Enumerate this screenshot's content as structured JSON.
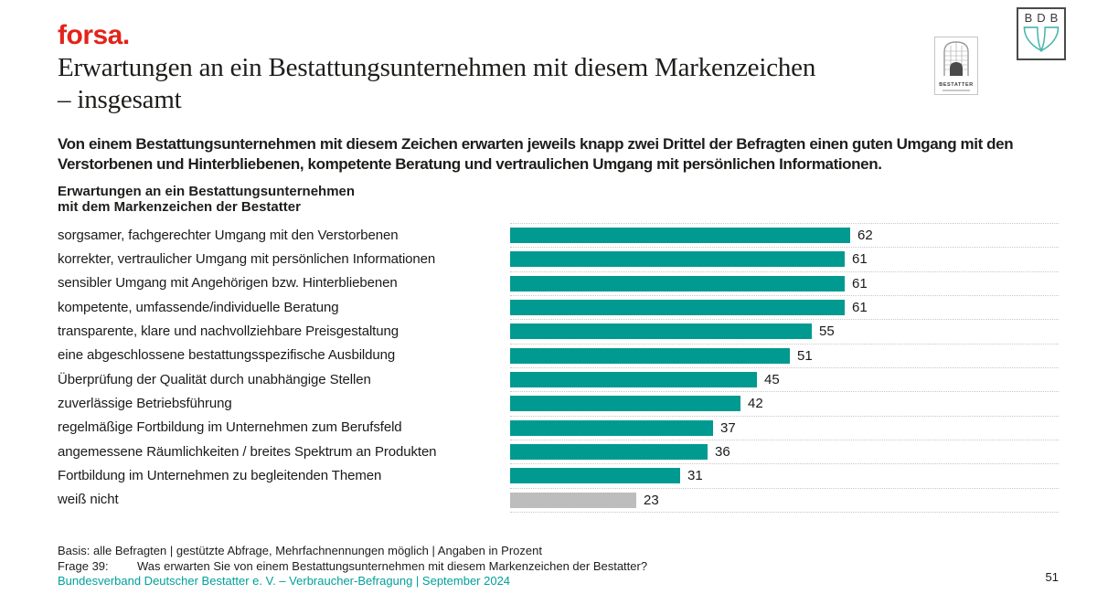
{
  "header": {
    "brand": "forsa.",
    "title_line1": "Erwartungen an ein Bestattungsunternehmen mit diesem Markenzeichen",
    "title_line2": "– insgesamt",
    "bestatter_logo_label": "BESTATTER",
    "bdb_logo_letters": "BDB"
  },
  "intro": {
    "text": "Von einem Bestattungsunternehmen mit diesem Zeichen erwarten jeweils knapp zwei Drittel der Befragten einen guten Umgang mit den Verstorbenen und Hinterbliebenen, kompetente Beratung und vertraulichen Umgang mit persönlichen Informationen."
  },
  "chart_data": {
    "type": "bar",
    "orientation": "horizontal",
    "title_line1": "Erwartungen an ein Bestattungsunternehmen",
    "title_line2": "mit dem Markenzeichen der Bestatter",
    "categories": [
      "sorgsamer, fachgerechter Umgang mit den Verstorbenen",
      "korrekter, vertraulicher Umgang mit persönlichen Informationen",
      "sensibler Umgang mit Angehörigen bzw. Hinterbliebenen",
      "kompetente, umfassende/individuelle Beratung",
      "transparente, klare und nachvollziehbare Preisgestaltung",
      "eine abgeschlossene bestattungsspezifische Ausbildung",
      "Überprüfung der Qualität durch unabhängige Stellen",
      "zuverlässige Betriebsführung",
      "regelmäßige Fortbildung im Unternehmen zum Berufsfeld",
      "angemessene Räumlichkeiten / breites Spektrum an Produkten",
      "Fortbildung im Unternehmen zu begleitenden Themen",
      "weiß nicht"
    ],
    "values": [
      62,
      61,
      61,
      61,
      55,
      51,
      45,
      42,
      37,
      36,
      31,
      23
    ],
    "muted_index": 11,
    "xlim": [
      0,
      100
    ],
    "unit": "Prozent",
    "grid": "dotted row separators, no axis",
    "legend": "none",
    "bar_color": "#009a90",
    "muted_bar_color": "#bdbdbd"
  },
  "footer": {
    "basis": "Basis: alle Befragten | gestützte Abfrage, Mehrfachnennungen möglich | Angaben in Prozent",
    "frage_label": "Frage 39:",
    "frage_text": "Was erwarten Sie von einem Bestattungsunternehmen mit diesem Markenzeichen der Bestatter?",
    "source": "Bundesverband Deutscher Bestatter e. V. – Verbraucher-Befragung | September 2024",
    "page_number": "51"
  },
  "colors": {
    "brand_red": "#e2231a",
    "teal_bar": "#009a90",
    "footer_teal": "#00a09a",
    "muted_gray": "#bdbdbd",
    "bdb_teal": "#45b5ac"
  }
}
